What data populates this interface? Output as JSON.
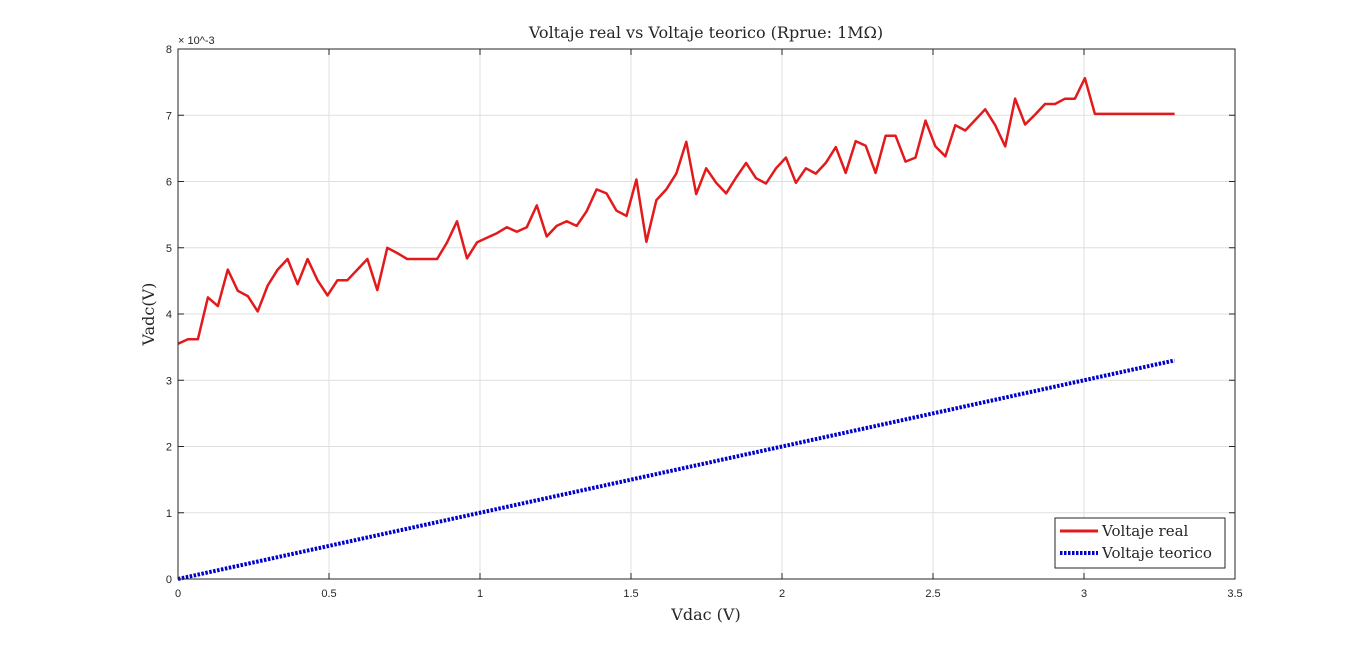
{
  "chart_data": {
    "type": "line",
    "title": "Voltaje real vs Voltaje teorico (Rprue: 1MΩ)",
    "xlabel": "Vdac (V)",
    "ylabel": "Vadc(V)",
    "y_exponent_label": "× 10^-3",
    "xlim": [
      0,
      3.5
    ],
    "ylim": [
      0,
      8
    ],
    "xticks": [
      0,
      0.5,
      1,
      1.5,
      2,
      2.5,
      3,
      3.5
    ],
    "xtick_labels": [
      "0",
      "0.5",
      "1",
      "1.5",
      "2",
      "2.5",
      "3",
      "3.5"
    ],
    "yticks": [
      0,
      1,
      2,
      3,
      4,
      5,
      6,
      7,
      8
    ],
    "ytick_labels": [
      "0",
      "1",
      "2",
      "3",
      "4",
      "5",
      "6",
      "7",
      "8"
    ],
    "grid": true,
    "legend_position": "bottom-right",
    "series": [
      {
        "name": "Voltaje real",
        "color": "#e31a1c",
        "style": "solid",
        "x": [
          0,
          0.033,
          0.066,
          0.099,
          0.132,
          0.165,
          0.198,
          0.231,
          0.264,
          0.297,
          0.33,
          0.363,
          0.396,
          0.429,
          0.462,
          0.495,
          0.528,
          0.561,
          0.594,
          0.627,
          0.66,
          0.693,
          0.726,
          0.759,
          0.792,
          0.825,
          0.858,
          0.891,
          0.924,
          0.957,
          0.99,
          1.023,
          1.056,
          1.089,
          1.122,
          1.155,
          1.188,
          1.221,
          1.254,
          1.287,
          1.32,
          1.353,
          1.386,
          1.419,
          1.452,
          1.485,
          1.518,
          1.551,
          1.584,
          1.617,
          1.65,
          1.683,
          1.716,
          1.749,
          1.782,
          1.815,
          1.848,
          1.881,
          1.914,
          1.947,
          1.98,
          2.013,
          2.046,
          2.079,
          2.112,
          2.145,
          2.178,
          2.211,
          2.244,
          2.277,
          2.31,
          2.343,
          2.376,
          2.409,
          2.442,
          2.475,
          2.508,
          2.541,
          2.574,
          2.607,
          2.64,
          2.673,
          2.706,
          2.739,
          2.772,
          2.805,
          2.838,
          2.871,
          2.904,
          2.937,
          2.97,
          3.003,
          3.036,
          3.069,
          3.102,
          3.135,
          3.168,
          3.201,
          3.234,
          3.267,
          3.3
        ],
        "y": [
          3.55,
          3.62,
          3.62,
          4.25,
          4.12,
          4.67,
          4.35,
          4.27,
          4.04,
          4.43,
          4.67,
          4.83,
          4.45,
          4.83,
          4.51,
          4.28,
          4.51,
          4.51,
          4.67,
          4.83,
          4.36,
          5.0,
          4.92,
          4.83,
          4.83,
          4.83,
          4.83,
          5.08,
          5.4,
          4.84,
          5.08,
          5.15,
          5.22,
          5.31,
          5.24,
          5.31,
          5.64,
          5.17,
          5.33,
          5.4,
          5.33,
          5.55,
          5.88,
          5.82,
          5.56,
          5.48,
          6.03,
          5.09,
          5.72,
          5.88,
          6.12,
          6.6,
          5.81,
          6.2,
          5.98,
          5.82,
          6.06,
          6.28,
          6.05,
          5.97,
          6.2,
          6.36,
          5.98,
          6.2,
          6.12,
          6.28,
          6.52,
          6.13,
          6.61,
          6.54,
          6.13,
          6.69,
          6.69,
          6.3,
          6.36,
          6.92,
          6.53,
          6.38,
          6.85,
          6.77,
          6.93,
          7.09,
          6.85,
          6.53,
          7.25,
          6.86,
          7.01,
          7.17,
          7.17,
          7.25,
          7.25,
          7.56,
          7.02,
          7.02,
          7.02,
          7.02,
          7.02,
          7.02,
          7.02,
          7.02,
          7.02
        ]
      },
      {
        "name": "Voltaje teorico",
        "color": "#0000cc",
        "style": "dotted",
        "x": [
          0,
          3.3
        ],
        "y": [
          0,
          3.3
        ]
      }
    ]
  }
}
